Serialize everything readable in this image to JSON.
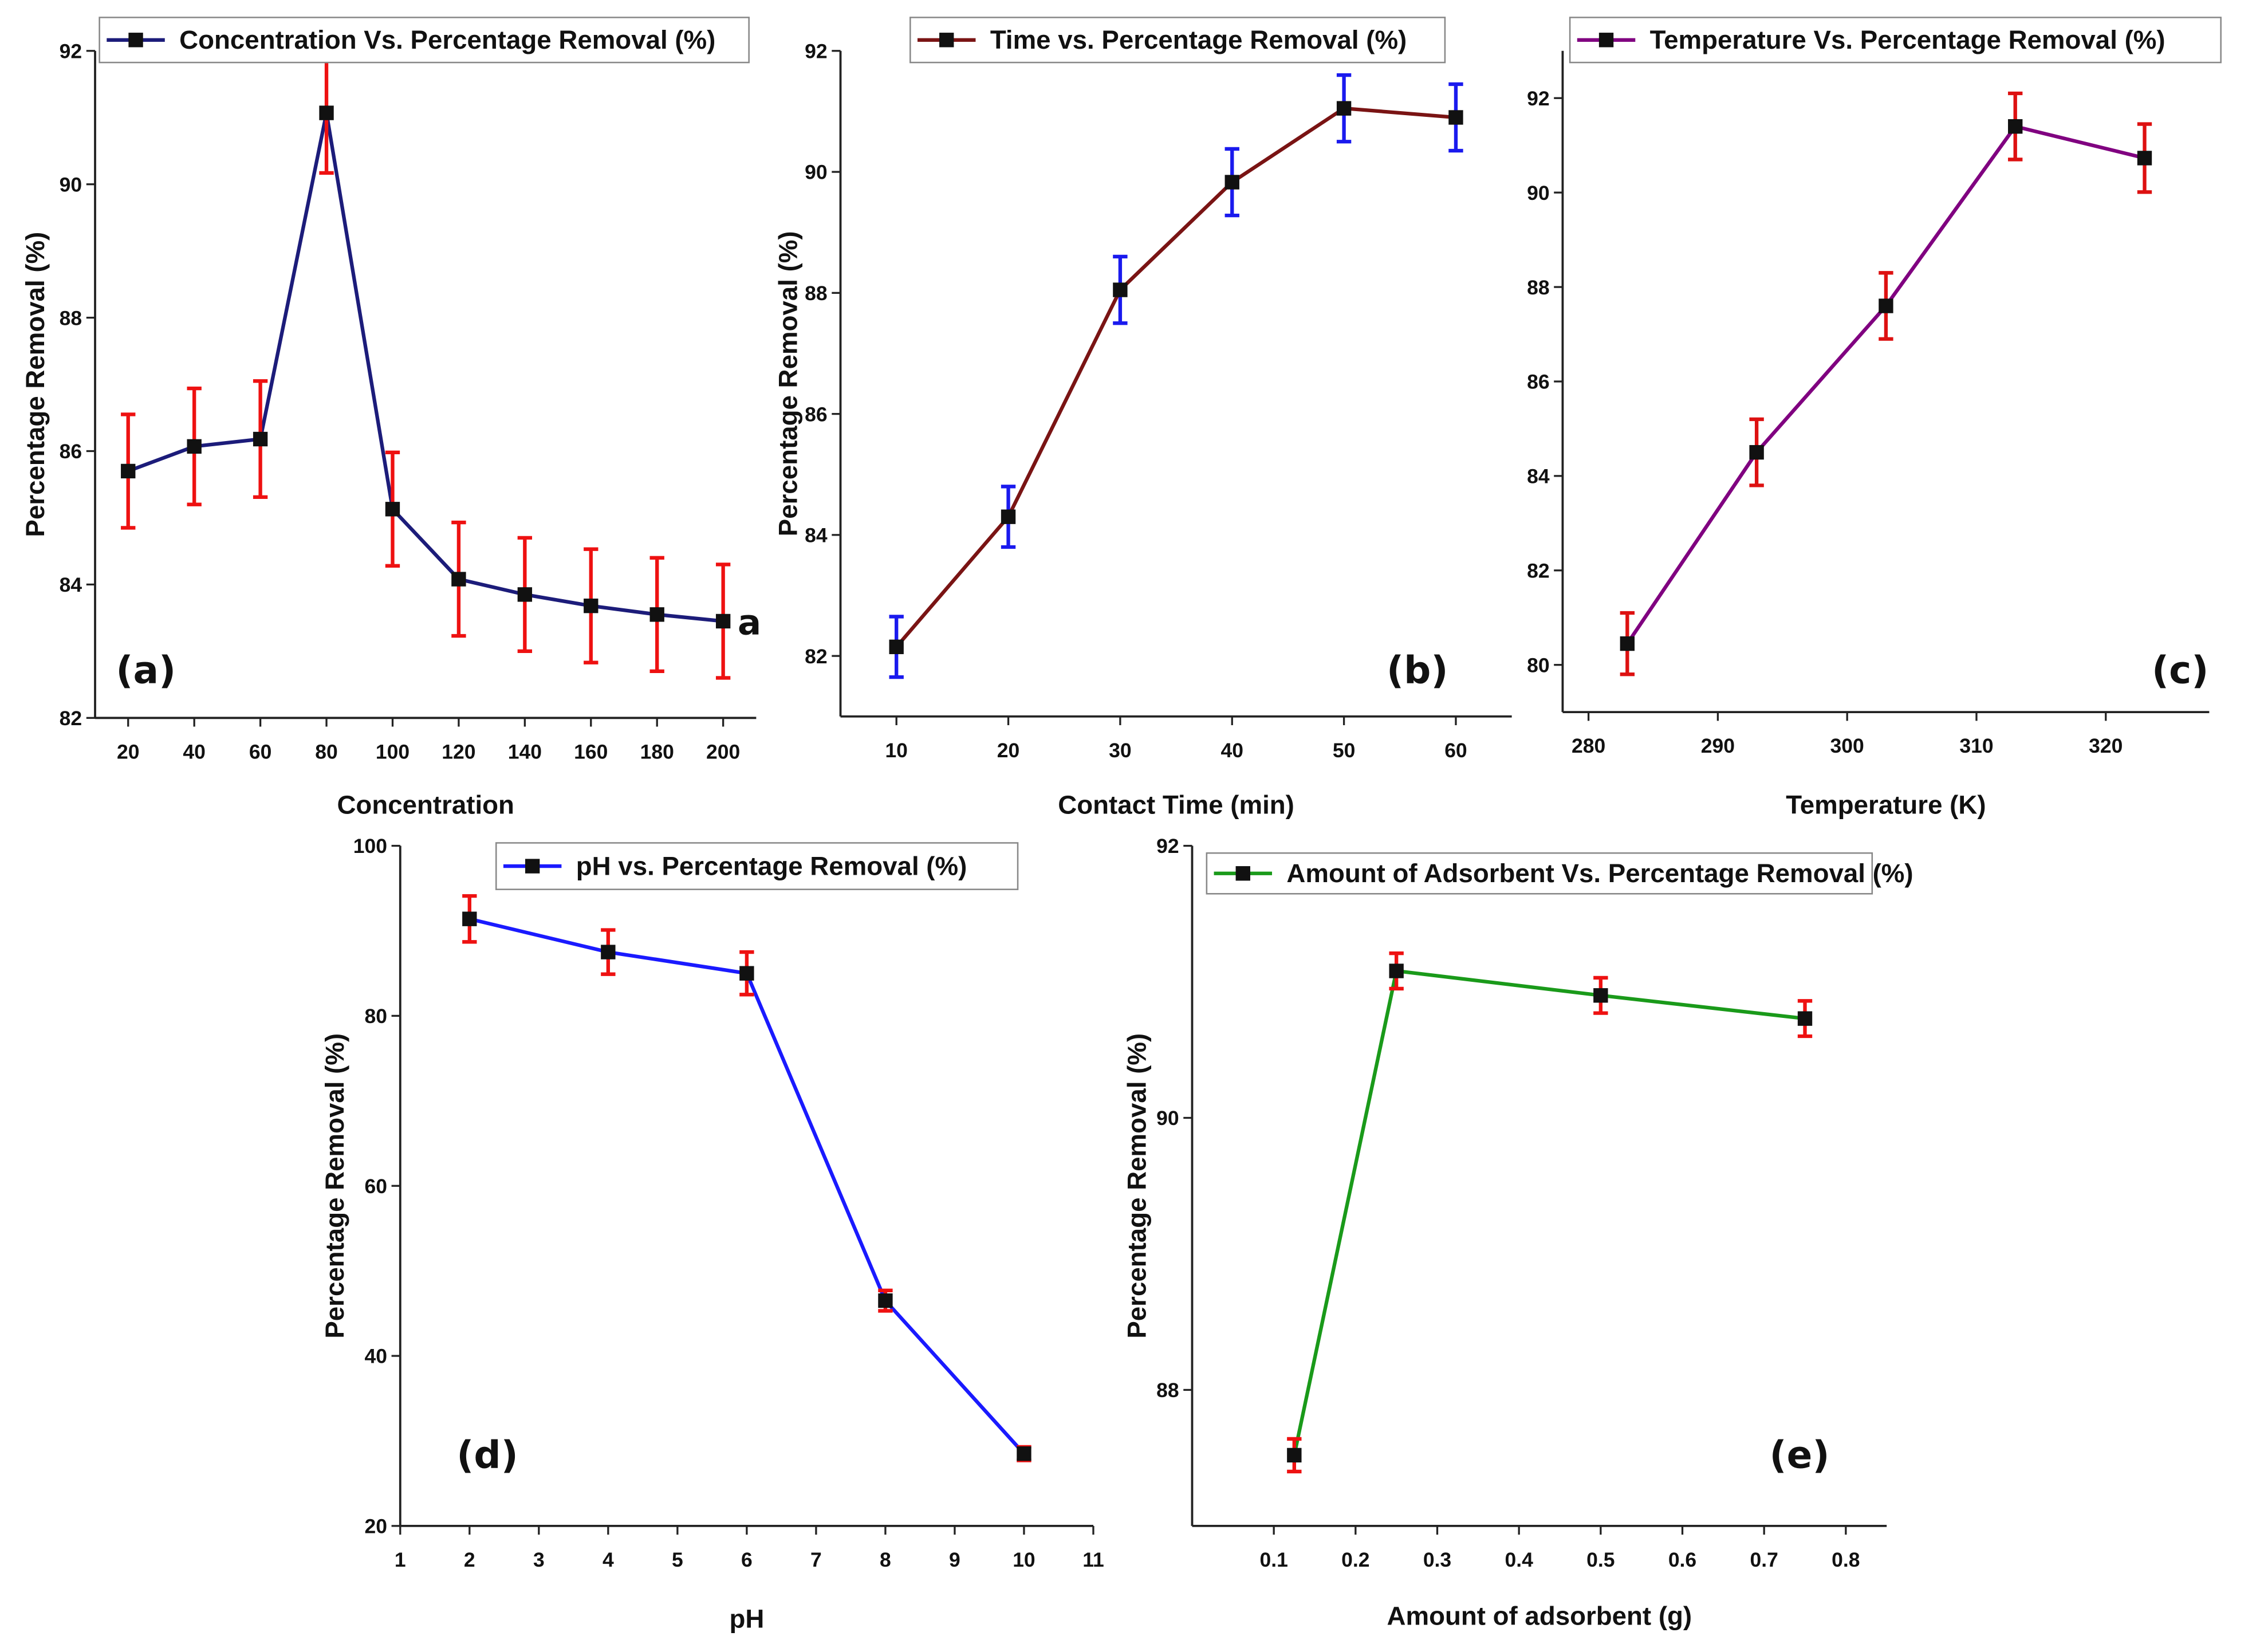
{
  "chart_data": [
    {
      "type": "line",
      "panel_label": "(a)",
      "annotation": "a",
      "legend": "Concentration Vs. Percentage Removal (%)",
      "xlabel": "Concentration",
      "ylabel": "Percentage Removal (%)",
      "x": [
        20,
        40,
        60,
        80,
        100,
        120,
        140,
        160,
        180,
        200
      ],
      "y": [
        85.7,
        86.07,
        86.18,
        91.07,
        85.13,
        84.08,
        83.85,
        83.68,
        83.55,
        83.45
      ],
      "yerr": [
        0.85,
        0.87,
        0.87,
        0.9,
        0.85,
        0.85,
        0.85,
        0.85,
        0.85,
        0.85
      ],
      "xlim": [
        10,
        210
      ],
      "ylim": [
        82,
        92
      ],
      "xticks": [
        20,
        40,
        60,
        80,
        100,
        120,
        140,
        160,
        180,
        200
      ],
      "yticks": [
        82,
        84,
        86,
        88,
        90,
        92
      ],
      "line_color": "#1c1c7a",
      "err_color": "#ee1111"
    },
    {
      "type": "line",
      "panel_label": "(b)",
      "legend": "Time vs. Percentage Removal (%)",
      "xlabel": "Contact Time (min)",
      "ylabel": "Percentage Removal (%)",
      "x": [
        10,
        20,
        30,
        40,
        50,
        60
      ],
      "y": [
        82.15,
        84.3,
        88.05,
        89.83,
        91.05,
        90.9
      ],
      "yerr": [
        0.5,
        0.5,
        0.55,
        0.55,
        0.55,
        0.55
      ],
      "xlim": [
        5,
        65
      ],
      "ylim": [
        81,
        92
      ],
      "xticks": [
        10,
        20,
        30,
        40,
        50,
        60
      ],
      "yticks": [
        82,
        84,
        86,
        88,
        90,
        92
      ],
      "line_color": "#7a1414",
      "err_color": "#1a1aee"
    },
    {
      "type": "line",
      "panel_label": "(c)",
      "legend": "Temperature Vs. Percentage Removal (%)",
      "xlabel": "Temperature (K)",
      "ylabel": "",
      "x": [
        283,
        293,
        303,
        313,
        323
      ],
      "y": [
        80.45,
        84.5,
        87.6,
        91.4,
        90.73
      ],
      "yerr": [
        0.65,
        0.7,
        0.7,
        0.7,
        0.72
      ],
      "xlim": [
        278,
        328
      ],
      "ylim": [
        79,
        93
      ],
      "xticks": [
        280,
        290,
        300,
        310,
        320
      ],
      "yticks": [
        80,
        82,
        84,
        86,
        88,
        90,
        92
      ],
      "line_color": "#800080",
      "err_color": "#dd1111"
    },
    {
      "type": "line",
      "panel_label": "(d)",
      "legend": "pH vs. Percentage Removal (%)",
      "xlabel": "pH",
      "ylabel": "Percentage Removal (%)",
      "x": [
        2,
        4,
        6,
        8,
        10
      ],
      "y": [
        91.4,
        87.5,
        85.0,
        46.5,
        28.5
      ],
      "yerr": [
        2.7,
        2.6,
        2.5,
        1.2,
        0.8
      ],
      "xlim": [
        1,
        11
      ],
      "ylim": [
        20,
        100
      ],
      "xticks": [
        1,
        2,
        3,
        4,
        5,
        6,
        7,
        8,
        9,
        10,
        11
      ],
      "yticks": [
        20,
        40,
        60,
        80,
        100
      ],
      "line_color": "#1a1aff",
      "err_color": "#ee1111"
    },
    {
      "type": "line",
      "panel_label": "(e)",
      "legend": "Amount of Adsorbent Vs. Percentage Removal (%)",
      "xlabel": "Amount of adsorbent (g)",
      "ylabel": "Percentage Removal (%)",
      "x": [
        0.125,
        0.25,
        0.5,
        0.75
      ],
      "y": [
        87.52,
        91.08,
        90.9,
        90.73
      ],
      "yerr": [
        0.12,
        0.13,
        0.13,
        0.13
      ],
      "xlim": [
        0.0,
        0.85
      ],
      "ylim": [
        87.0,
        92.0
      ],
      "xticks": [
        0.1,
        0.2,
        0.3,
        0.4,
        0.5,
        0.6,
        0.7,
        0.8
      ],
      "yticks": [
        88,
        90,
        92
      ],
      "line_color": "#1a9a1a",
      "err_color": "#ee1111"
    }
  ]
}
